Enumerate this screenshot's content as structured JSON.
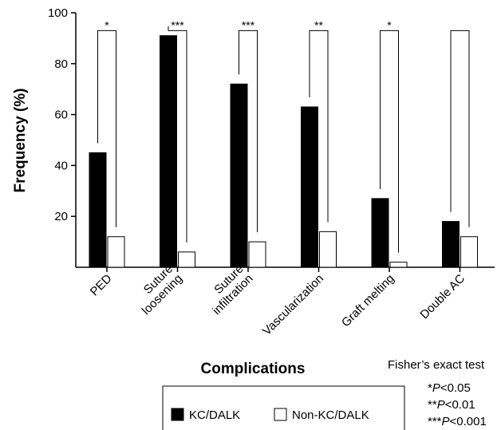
{
  "chart_data": {
    "type": "bar",
    "xlabel": "Complications",
    "ylabel": "Frequency (%)",
    "ylim": [
      0,
      100
    ],
    "yticks": [
      "20",
      "40",
      "60",
      "80",
      "100"
    ],
    "categories": [
      [
        "PED"
      ],
      [
        "Suture",
        "loosening"
      ],
      [
        "Suture",
        "infiltration"
      ],
      [
        "Vascularization"
      ],
      [
        "Graft melting"
      ],
      [
        "Double AC"
      ]
    ],
    "series": [
      {
        "name": "KC/DALK",
        "color": "#000000",
        "values": [
          45,
          91,
          72,
          63,
          27,
          18
        ]
      },
      {
        "name": "Non-KC/DALK",
        "color": "#ffffff",
        "values": [
          12,
          6,
          10,
          14,
          2,
          12
        ]
      }
    ],
    "significance": [
      "*",
      "***",
      "***",
      "**",
      "*",
      ""
    ],
    "bracket_top": 93,
    "legend_position": "bottom",
    "test_note": {
      "title": "Fisher’s exact test",
      "lines": [
        {
          "stars": "*",
          "p": "P",
          "cond": "<0.05"
        },
        {
          "stars": "**",
          "p": "P",
          "cond": "<0.01"
        },
        {
          "stars": "***",
          "p": "P",
          "cond": "<0.001"
        }
      ]
    }
  }
}
